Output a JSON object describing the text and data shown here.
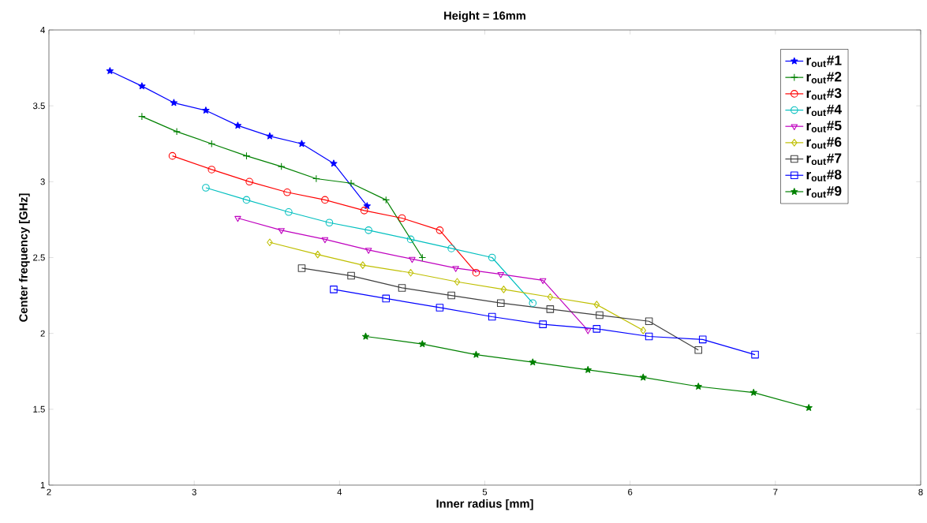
{
  "chart_data": {
    "type": "line",
    "title": "Height = 16mm",
    "xlabel": "Inner radius [mm]",
    "ylabel": "Center frequency [GHz]",
    "xlim": [
      2,
      8
    ],
    "ylim": [
      1,
      4
    ],
    "xticks": [
      2,
      3,
      4,
      5,
      6,
      7,
      8
    ],
    "yticks": [
      1,
      1.5,
      2,
      2.5,
      3,
      3.5,
      4
    ],
    "grid": false,
    "legend": "top right",
    "line_style": "solid",
    "series": [
      {
        "name": "r$_{out}$#1",
        "color": "#0000ff",
        "marker": "star",
        "x": [
          2.42,
          2.64,
          2.86,
          3.08,
          3.3,
          3.52,
          3.74,
          3.96,
          4.19
        ],
        "values": [
          3.73,
          3.63,
          3.52,
          3.47,
          3.37,
          3.3,
          3.25,
          3.12,
          2.84
        ]
      },
      {
        "name": "r$_{out}$#2",
        "color": "#008000",
        "marker": "cross",
        "x": [
          2.64,
          2.88,
          3.12,
          3.36,
          3.6,
          3.84,
          4.08,
          4.32,
          4.57
        ],
        "values": [
          3.43,
          3.33,
          3.25,
          3.17,
          3.1,
          3.02,
          2.99,
          2.88,
          2.5
        ]
      },
      {
        "name": "r$_{out}$#3",
        "color": "#ff0000",
        "marker": "circle",
        "x": [
          2.85,
          3.12,
          3.38,
          3.64,
          3.9,
          4.17,
          4.43,
          4.69,
          4.94
        ],
        "values": [
          3.17,
          3.08,
          3.0,
          2.93,
          2.88,
          2.81,
          2.76,
          2.68,
          2.4
        ]
      },
      {
        "name": "r$_{out}$#4",
        "color": "#00bfbf",
        "marker": "circle",
        "x": [
          3.08,
          3.36,
          3.65,
          3.93,
          4.2,
          4.49,
          4.77,
          5.05,
          5.33
        ],
        "values": [
          2.96,
          2.88,
          2.8,
          2.73,
          2.68,
          2.62,
          2.56,
          2.5,
          2.2
        ]
      },
      {
        "name": "r$_{out}$#5",
        "color": "#bf00bf",
        "marker": "triangle",
        "x": [
          3.3,
          3.6,
          3.9,
          4.2,
          4.5,
          4.8,
          5.11,
          5.4,
          5.71
        ],
        "values": [
          2.76,
          2.68,
          2.62,
          2.55,
          2.49,
          2.43,
          2.39,
          2.35,
          2.02
        ]
      },
      {
        "name": "r$_{out}$#6",
        "color": "#bfbf00",
        "marker": "diamond",
        "x": [
          3.52,
          3.85,
          4.16,
          4.49,
          4.81,
          5.13,
          5.45,
          5.77,
          6.09
        ],
        "values": [
          2.6,
          2.52,
          2.45,
          2.4,
          2.34,
          2.29,
          2.24,
          2.19,
          2.02
        ]
      },
      {
        "name": "r$_{out}$#7",
        "color": "#404040",
        "marker": "square",
        "x": [
          3.74,
          4.08,
          4.43,
          4.77,
          5.11,
          5.45,
          5.79,
          6.13,
          6.47
        ],
        "values": [
          2.43,
          2.38,
          2.3,
          2.25,
          2.2,
          2.16,
          2.12,
          2.08,
          1.89
        ]
      },
      {
        "name": "r$_{out}$#8",
        "color": "#0000ff",
        "marker": "square",
        "x": [
          3.96,
          4.32,
          4.69,
          5.05,
          5.4,
          5.77,
          6.13,
          6.5,
          6.86
        ],
        "values": [
          2.29,
          2.23,
          2.17,
          2.11,
          2.06,
          2.03,
          1.98,
          1.96,
          1.86
        ]
      },
      {
        "name": "r$_{out}$#9",
        "color": "#008000",
        "marker": "star",
        "x": [
          4.18,
          4.57,
          4.94,
          5.33,
          5.71,
          6.09,
          6.47,
          6.85,
          7.23
        ],
        "values": [
          1.98,
          1.93,
          1.86,
          1.81,
          1.76,
          1.71,
          1.65,
          1.61,
          1.51
        ]
      }
    ]
  }
}
